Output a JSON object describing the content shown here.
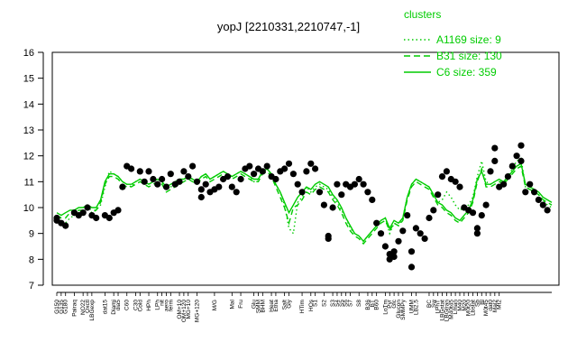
{
  "chart_data": {
    "type": "line",
    "title": "yopJ [2210331,2210747,-1]",
    "xlabel": "",
    "ylabel": "",
    "ylim": [
      7,
      16
    ],
    "yticks": [
      7,
      8,
      9,
      10,
      11,
      12,
      13,
      14,
      15,
      16
    ],
    "grid": false,
    "legend_position": "top-right",
    "legend": {
      "title": "clusters",
      "entries": [
        {
          "label": "A1169 size: 9",
          "style": "dotted"
        },
        {
          "label": "B31 size: 130",
          "style": "dashed"
        },
        {
          "label": "C6 size: 359",
          "style": "solid"
        }
      ]
    },
    "colors": {
      "lines": "#00cc00",
      "points": "#000000"
    },
    "x_tick_labels": [
      "G150",
      "G135",
      "G180",
      "Pairaq",
      "NO22",
      "Oxctl",
      "LBGexp",
      "dat15",
      "Diami",
      "dia5",
      "C60",
      "C30",
      "Cold",
      "HPh",
      "LPh",
      "nit",
      "aero",
      "ferm",
      "OM+10",
      "OM+120",
      "MG+10",
      "MG+120",
      "M/G",
      "Mal",
      "Fru",
      "Glu",
      "SMM",
      "BHM",
      "Heat",
      "Etha",
      "Salt",
      "Gly",
      "HTim",
      "HOs",
      "S1",
      "S2",
      "S3",
      "S4",
      "S5",
      "S6",
      "S7",
      "S8",
      "B36",
      "BT",
      "B60",
      "LoTm",
      "Pyr",
      "Glc",
      "Glucon",
      "SMMPy",
      "UMM",
      "LB2.5",
      "BC",
      "Sw",
      "LPhT",
      "LBGstat",
      "LBGtran",
      "M40t45",
      "Lman",
      "M40",
      "M20",
      "M0t20",
      "Lbstat",
      "Sb",
      "Bl",
      "M0t45",
      "dat0",
      "Mal2",
      "Mt2"
    ],
    "x_tick_positions": [
      1,
      2,
      3,
      5,
      7,
      8,
      9,
      12,
      14,
      15,
      17,
      19,
      20,
      22,
      24,
      25,
      26,
      27,
      29,
      30,
      31,
      33,
      37,
      41,
      43,
      46,
      47,
      48,
      50,
      51,
      53,
      54,
      57,
      59,
      60,
      62,
      64,
      65,
      66,
      67,
      68,
      70,
      72,
      73,
      74,
      76,
      77,
      78,
      79,
      80,
      82,
      83,
      86,
      87,
      88,
      89,
      90,
      91,
      92,
      93,
      94,
      95,
      96,
      97,
      98,
      99,
      100,
      101,
      102
    ],
    "series": [
      {
        "name": "A1169 size: 9",
        "style": "dotted",
        "values": [
          9.5,
          9.3,
          9.4,
          9.6,
          9.7,
          9.8,
          9.9,
          10.0,
          9.8,
          9.9,
          10.1,
          10.8,
          11.4,
          11.3,
          11.2,
          11.0,
          10.9,
          10.8,
          11.0,
          11.1,
          11.0,
          10.9,
          11.0,
          11.1,
          11.0,
          10.7,
          10.8,
          10.9,
          11.0,
          11.1,
          11.2,
          11.1,
          11.0,
          11.2,
          11.3,
          11.1,
          11.2,
          11.3,
          11.4,
          11.3,
          11.2,
          11.3,
          11.4,
          11.3,
          11.2,
          11.0,
          11.1,
          11.4,
          11.5,
          11.3,
          10.9,
          10.6,
          10.1,
          9.2,
          9.0,
          10.2,
          10.4,
          10.8,
          10.6,
          10.8,
          10.9,
          10.8,
          10.7,
          10.4,
          10.2,
          9.9,
          9.6,
          9.2,
          9.0,
          8.9,
          8.7,
          8.9,
          9.1,
          9.3,
          9.5,
          9.6,
          9.0,
          9.4,
          9.3,
          9.6,
          10.4,
          10.9,
          11.1,
          11.0,
          10.9,
          10.8,
          10.5,
          10.2,
          10.3,
          10.6,
          10.4,
          10.1,
          9.9,
          10.0,
          10.1,
          10.4,
          11.2,
          11.8,
          11.0,
          10.9,
          11.0,
          11.1,
          10.9,
          11.2,
          11.5,
          11.8,
          11.9,
          10.8,
          10.7,
          10.6,
          10.5,
          10.3,
          10.1,
          10.0
        ]
      },
      {
        "name": "B31 size: 130",
        "style": "dashed",
        "values": [
          9.7,
          9.6,
          9.6,
          9.8,
          9.7,
          9.9,
          9.9,
          10.0,
          9.9,
          9.9,
          10.2,
          10.9,
          11.2,
          11.2,
          11.1,
          10.9,
          10.8,
          10.8,
          10.9,
          11.0,
          10.9,
          10.8,
          10.9,
          11.0,
          10.9,
          10.6,
          10.7,
          10.8,
          10.9,
          11.0,
          11.1,
          11.0,
          10.9,
          11.1,
          11.2,
          11.0,
          11.1,
          11.2,
          11.3,
          11.2,
          11.1,
          11.2,
          11.3,
          11.2,
          11.1,
          11.0,
          11.0,
          11.3,
          11.4,
          11.2,
          10.8,
          10.4,
          10.0,
          9.4,
          10.0,
          10.1,
          10.3,
          10.6,
          10.5,
          10.7,
          10.8,
          10.7,
          10.6,
          10.3,
          10.1,
          9.8,
          9.4,
          9.1,
          8.9,
          8.8,
          8.6,
          8.8,
          9.0,
          9.2,
          9.4,
          9.5,
          9.1,
          9.4,
          9.3,
          9.5,
          10.3,
          10.8,
          11.0,
          10.9,
          10.8,
          10.7,
          10.4,
          10.1,
          10.0,
          9.8,
          9.7,
          9.5,
          9.4,
          9.6,
          9.8,
          10.2,
          11.0,
          11.5,
          10.8,
          10.8,
          10.9,
          11.0,
          10.9,
          11.1,
          11.3,
          11.5,
          11.6,
          10.8,
          10.7,
          10.6,
          10.5,
          10.3,
          10.2,
          10.1
        ]
      },
      {
        "name": "C6 size: 359",
        "style": "solid",
        "values": [
          9.8,
          9.7,
          9.8,
          9.9,
          9.9,
          10.0,
          10.0,
          10.1,
          10.0,
          10.0,
          10.3,
          11.0,
          11.3,
          11.3,
          11.2,
          11.0,
          10.9,
          10.9,
          11.0,
          11.1,
          11.0,
          10.9,
          11.0,
          11.1,
          11.0,
          10.8,
          10.9,
          11.0,
          11.1,
          11.1,
          11.2,
          11.1,
          11.0,
          11.2,
          11.3,
          11.1,
          11.2,
          11.3,
          11.4,
          11.3,
          11.2,
          11.3,
          11.4,
          11.3,
          11.2,
          11.1,
          11.1,
          11.4,
          11.5,
          11.3,
          10.9,
          10.6,
          10.2,
          9.8,
          10.1,
          10.4,
          10.6,
          10.8,
          10.7,
          10.9,
          11.0,
          10.9,
          10.8,
          10.5,
          10.3,
          10.0,
          9.6,
          9.3,
          9.0,
          8.9,
          8.7,
          8.9,
          9.1,
          9.3,
          9.5,
          9.6,
          9.2,
          9.5,
          9.4,
          9.6,
          10.4,
          10.9,
          11.1,
          11.0,
          10.9,
          10.8,
          10.5,
          10.2,
          10.1,
          9.9,
          9.8,
          9.6,
          9.5,
          9.7,
          9.9,
          10.3,
          11.1,
          11.4,
          10.9,
          10.9,
          11.0,
          11.1,
          11.0,
          11.2,
          11.4,
          11.6,
          11.7,
          10.9,
          10.8,
          10.7,
          10.6,
          10.4,
          10.3,
          10.2
        ]
      }
    ],
    "points": [
      [
        1,
        9.6
      ],
      [
        1,
        9.5
      ],
      [
        2,
        9.4
      ],
      [
        3,
        9.3
      ],
      [
        5,
        9.8
      ],
      [
        6,
        9.7
      ],
      [
        7,
        9.8
      ],
      [
        8,
        10.0
      ],
      [
        9,
        9.7
      ],
      [
        10,
        9.6
      ],
      [
        12,
        9.7
      ],
      [
        13,
        9.6
      ],
      [
        14,
        9.8
      ],
      [
        15,
        9.9
      ],
      [
        16,
        10.8
      ],
      [
        17,
        11.6
      ],
      [
        18,
        11.5
      ],
      [
        20,
        11.4
      ],
      [
        21,
        11.0
      ],
      [
        22,
        11.4
      ],
      [
        23,
        11.1
      ],
      [
        24,
        10.9
      ],
      [
        25,
        11.1
      ],
      [
        26,
        10.8
      ],
      [
        27,
        11.3
      ],
      [
        28,
        10.9
      ],
      [
        29,
        11.0
      ],
      [
        30,
        11.4
      ],
      [
        31,
        11.2
      ],
      [
        32,
        11.6
      ],
      [
        33,
        11.0
      ],
      [
        34,
        10.7
      ],
      [
        34,
        10.4
      ],
      [
        35,
        10.9
      ],
      [
        36,
        10.6
      ],
      [
        37,
        10.7
      ],
      [
        38,
        10.8
      ],
      [
        39,
        11.1
      ],
      [
        40,
        11.2
      ],
      [
        41,
        10.8
      ],
      [
        42,
        10.6
      ],
      [
        43,
        11.1
      ],
      [
        44,
        11.5
      ],
      [
        45,
        11.6
      ],
      [
        46,
        11.3
      ],
      [
        47,
        11.5
      ],
      [
        48,
        11.4
      ],
      [
        49,
        11.6
      ],
      [
        50,
        11.2
      ],
      [
        51,
        11.1
      ],
      [
        52,
        11.4
      ],
      [
        53,
        11.5
      ],
      [
        54,
        11.7
      ],
      [
        55,
        11.3
      ],
      [
        56,
        10.9
      ],
      [
        57,
        10.6
      ],
      [
        58,
        11.4
      ],
      [
        59,
        11.7
      ],
      [
        60,
        11.5
      ],
      [
        61,
        10.6
      ],
      [
        62,
        10.1
      ],
      [
        63,
        8.9
      ],
      [
        63,
        8.8
      ],
      [
        64,
        10.0
      ],
      [
        65,
        10.9
      ],
      [
        66,
        10.5
      ],
      [
        67,
        10.9
      ],
      [
        68,
        10.8
      ],
      [
        69,
        10.9
      ],
      [
        70,
        11.1
      ],
      [
        71,
        10.9
      ],
      [
        72,
        10.6
      ],
      [
        73,
        10.3
      ],
      [
        74,
        9.4
      ],
      [
        75,
        9.0
      ],
      [
        76,
        8.5
      ],
      [
        77,
        8.2
      ],
      [
        77,
        8.0
      ],
      [
        78,
        8.1
      ],
      [
        78,
        8.3
      ],
      [
        79,
        8.7
      ],
      [
        80,
        9.1
      ],
      [
        81,
        9.7
      ],
      [
        82,
        8.3
      ],
      [
        82,
        7.7
      ],
      [
        83,
        9.2
      ],
      [
        84,
        9.0
      ],
      [
        85,
        8.8
      ],
      [
        86,
        9.6
      ],
      [
        87,
        9.9
      ],
      [
        88,
        10.5
      ],
      [
        89,
        11.2
      ],
      [
        90,
        11.4
      ],
      [
        91,
        11.1
      ],
      [
        92,
        11.0
      ],
      [
        93,
        10.8
      ],
      [
        94,
        10.0
      ],
      [
        95,
        9.9
      ],
      [
        96,
        9.8
      ],
      [
        97,
        9.2
      ],
      [
        97,
        9.0
      ],
      [
        98,
        9.7
      ],
      [
        99,
        10.1
      ],
      [
        100,
        11.4
      ],
      [
        101,
        12.3
      ],
      [
        101,
        11.8
      ],
      [
        102,
        10.8
      ],
      [
        103,
        10.9
      ],
      [
        104,
        11.2
      ],
      [
        105,
        11.6
      ],
      [
        106,
        12.0
      ],
      [
        107,
        12.4
      ],
      [
        107,
        11.8
      ],
      [
        108,
        10.6
      ],
      [
        109,
        10.9
      ],
      [
        110,
        10.6
      ],
      [
        111,
        10.3
      ],
      [
        112,
        10.1
      ],
      [
        113,
        9.9
      ]
    ]
  }
}
